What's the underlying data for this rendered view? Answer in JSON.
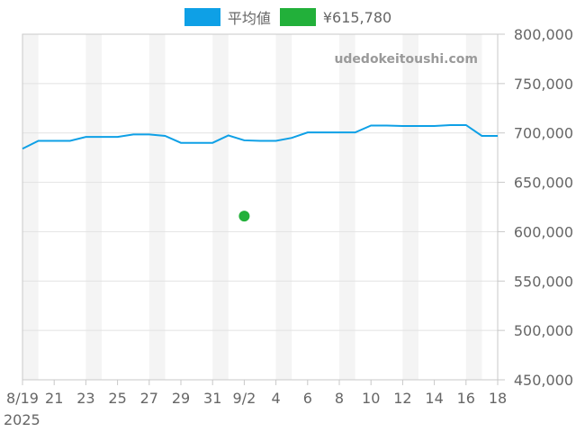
{
  "legend": {
    "items": [
      {
        "label": "平均値",
        "color": "#0ea0e6"
      },
      {
        "label": "¥615,780",
        "color": "#22b03a"
      }
    ]
  },
  "watermark": "udedokeitoushi.com",
  "chart_data": {
    "type": "line",
    "title": "",
    "xlabel": "",
    "ylabel": "",
    "ylim": [
      450000,
      800000
    ],
    "yticks": [
      450000,
      500000,
      550000,
      600000,
      650000,
      700000,
      750000,
      800000
    ],
    "ytick_labels": [
      "450,000",
      "500,000",
      "550,000",
      "600,000",
      "650,000",
      "700,000",
      "750,000",
      "800,000"
    ],
    "x_start": "2025-08-19",
    "x_end": "2025-09-18",
    "xticks": [
      {
        "date": "2025-08-19",
        "label": "8/19",
        "sublabel": "2025"
      },
      {
        "date": "2025-08-21",
        "label": "21"
      },
      {
        "date": "2025-08-23",
        "label": "23"
      },
      {
        "date": "2025-08-25",
        "label": "25"
      },
      {
        "date": "2025-08-27",
        "label": "27"
      },
      {
        "date": "2025-08-29",
        "label": "29"
      },
      {
        "date": "2025-08-31",
        "label": "31"
      },
      {
        "date": "2025-09-02",
        "label": "9/2"
      },
      {
        "date": "2025-09-04",
        "label": "4"
      },
      {
        "date": "2025-09-06",
        "label": "6"
      },
      {
        "date": "2025-09-08",
        "label": "8"
      },
      {
        "date": "2025-09-10",
        "label": "10"
      },
      {
        "date": "2025-09-12",
        "label": "12"
      },
      {
        "date": "2025-09-14",
        "label": "14"
      },
      {
        "date": "2025-09-16",
        "label": "16"
      },
      {
        "date": "2025-09-18",
        "label": "18"
      }
    ],
    "grid": true,
    "legend_position": "top",
    "series": [
      {
        "name": "平均値",
        "kind": "line",
        "color": "#0ea0e6",
        "points": [
          {
            "x": "2025-08-19",
            "y": 684000
          },
          {
            "x": "2025-08-20",
            "y": 692000
          },
          {
            "x": "2025-08-21",
            "y": 692000
          },
          {
            "x": "2025-08-22",
            "y": 692000
          },
          {
            "x": "2025-08-23",
            "y": 696000
          },
          {
            "x": "2025-08-24",
            "y": 696000
          },
          {
            "x": "2025-08-25",
            "y": 696000
          },
          {
            "x": "2025-08-26",
            "y": 698500
          },
          {
            "x": "2025-08-27",
            "y": 698500
          },
          {
            "x": "2025-08-28",
            "y": 697000
          },
          {
            "x": "2025-08-29",
            "y": 690000
          },
          {
            "x": "2025-08-30",
            "y": 690000
          },
          {
            "x": "2025-08-31",
            "y": 690000
          },
          {
            "x": "2025-09-01",
            "y": 697500
          },
          {
            "x": "2025-09-02",
            "y": 692500
          },
          {
            "x": "2025-09-03",
            "y": 692000
          },
          {
            "x": "2025-09-04",
            "y": 692000
          },
          {
            "x": "2025-09-05",
            "y": 695000
          },
          {
            "x": "2025-09-06",
            "y": 700500
          },
          {
            "x": "2025-09-07",
            "y": 700500
          },
          {
            "x": "2025-09-08",
            "y": 700500
          },
          {
            "x": "2025-09-09",
            "y": 700500
          },
          {
            "x": "2025-09-10",
            "y": 707500
          },
          {
            "x": "2025-09-11",
            "y": 707500
          },
          {
            "x": "2025-09-12",
            "y": 707000
          },
          {
            "x": "2025-09-13",
            "y": 707000
          },
          {
            "x": "2025-09-14",
            "y": 707000
          },
          {
            "x": "2025-09-15",
            "y": 708000
          },
          {
            "x": "2025-09-16",
            "y": 708000
          },
          {
            "x": "2025-09-17",
            "y": 697000
          },
          {
            "x": "2025-09-18",
            "y": 697000
          }
        ]
      },
      {
        "name": "¥615,780",
        "kind": "point",
        "color": "#22b03a",
        "points": [
          {
            "x": "2025-09-02",
            "y": 615780
          }
        ]
      }
    ]
  }
}
